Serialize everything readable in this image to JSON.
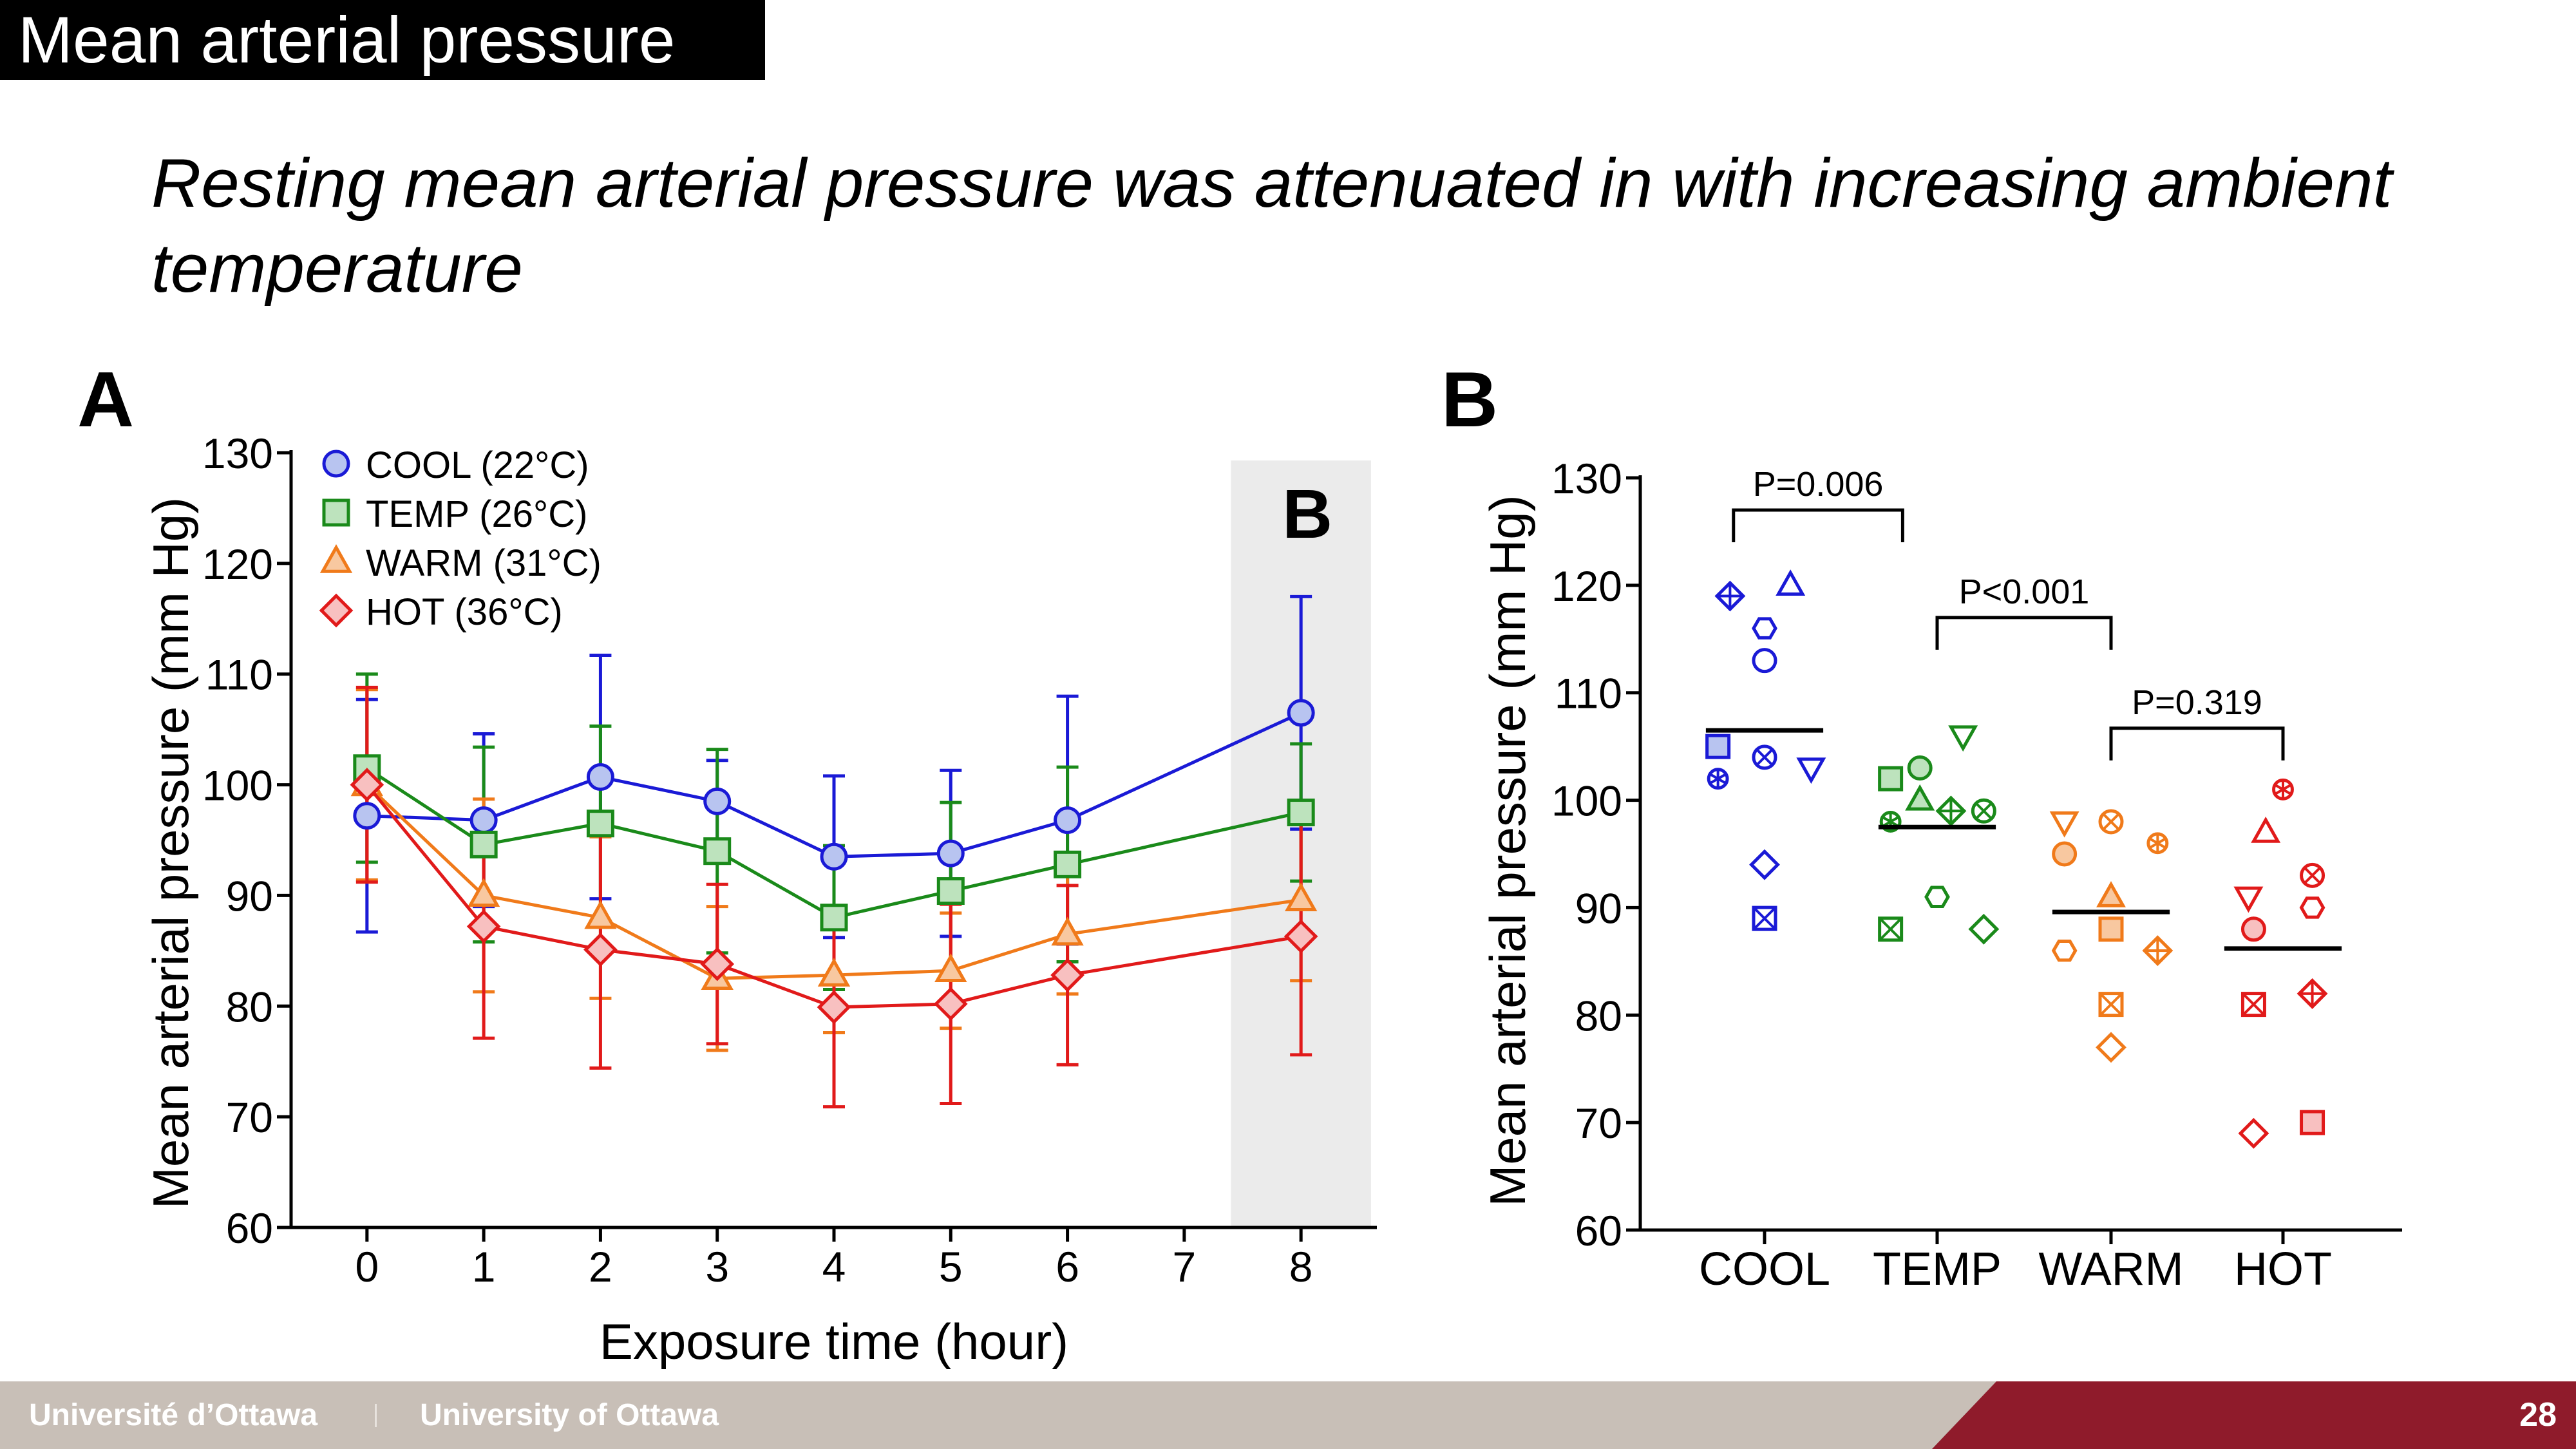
{
  "slide": {
    "title": "Mean arterial pressure",
    "subtitle_line1": "Resting mean arterial pressure was attenuated in with increasing ambient",
    "subtitle_line2": "temperature",
    "panel_a_label": "A",
    "panel_b_label": "B",
    "page_number": "28"
  },
  "footer": {
    "fr_name": "Université d’Ottawa",
    "en_name": "University of Ottawa"
  },
  "colors": {
    "COOL": "#1a1ad6",
    "TEMP": "#1a8a1a",
    "WARM": "#f07a1a",
    "HOT": "#e11a1a",
    "COOL_fill": "#b8c4f0",
    "TEMP_fill": "#bde3bd",
    "WARM_fill": "#f8c8a0",
    "HOT_fill": "#f8c0c0",
    "highlight": "#ebebeb",
    "footer_red": "#8f1b2b",
    "footer_gray": "#c8bfb7"
  },
  "chart_data": [
    {
      "type": "line",
      "xlabel": "Exposure time (hour)",
      "ylabel": "Mean arterial pressure (mm Hg)",
      "ylim": [
        60,
        130
      ],
      "yticks": [
        60,
        70,
        80,
        90,
        100,
        110,
        120,
        130
      ],
      "xlim": [
        -0.65,
        8.65
      ],
      "xticks": [
        0,
        1,
        2,
        3,
        4,
        5,
        6,
        7,
        8
      ],
      "highlight_region": {
        "x0": 7.4,
        "x1": 8.6,
        "label": "B"
      },
      "legend_position": "top-left",
      "grid": false,
      "series": [
        {
          "name": "COOL (22°C)",
          "key": "COOL",
          "marker": "circle",
          "x": [
            0,
            1,
            2,
            3,
            4,
            5,
            6,
            8
          ],
          "y": [
            97.2,
            96.8,
            100.7,
            98.5,
            93.5,
            93.8,
            96.8,
            106.5
          ],
          "err": [
            10.5,
            7.8,
            11,
            3.7,
            7.3,
            7.5,
            11.2,
            10.5
          ]
        },
        {
          "name": "TEMP (26°C)",
          "key": "TEMP",
          "marker": "square",
          "x": [
            0,
            1,
            2,
            3,
            4,
            5,
            6,
            8
          ],
          "y": [
            101.5,
            94.6,
            96.5,
            94.0,
            88.0,
            90.4,
            92.8,
            97.5
          ],
          "err": [
            8.5,
            8.8,
            8.8,
            9.2,
            6.5,
            8,
            8.8,
            6.2
          ]
        },
        {
          "name": "WARM (31°C)",
          "key": "WARM",
          "marker": "triangle",
          "x": [
            0,
            1,
            2,
            3,
            4,
            5,
            6,
            8
          ],
          "y": [
            100.0,
            90.0,
            88.0,
            82.5,
            82.8,
            83.2,
            86.5,
            89.6
          ],
          "err": [
            8.6,
            8.7,
            7.3,
            6.5,
            5.2,
            5.2,
            5.4,
            7.3
          ]
        },
        {
          "name": "HOT (36°C)",
          "key": "HOT",
          "marker": "diamond",
          "x": [
            0,
            1,
            2,
            3,
            4,
            5,
            6,
            8
          ],
          "y": [
            100.0,
            87.2,
            85.1,
            83.8,
            79.9,
            80.2,
            82.8,
            86.3
          ],
          "err": [
            8.8,
            10.1,
            10.7,
            7.2,
            9,
            9,
            8.1,
            10.7
          ]
        }
      ]
    },
    {
      "type": "scatter",
      "ylabel": "Mean arterial pressure (mm Hg)",
      "ylim": [
        60,
        130
      ],
      "yticks": [
        60,
        70,
        80,
        90,
        100,
        110,
        120,
        130
      ],
      "categories": [
        "COOL",
        "TEMP",
        "WARM",
        "HOT"
      ],
      "means": [
        106.5,
        97.5,
        89.6,
        86.2
      ],
      "brackets": [
        {
          "from": 0,
          "to": 1,
          "level": 127,
          "label": "P=0.006"
        },
        {
          "from": 1,
          "to": 2,
          "level": 117,
          "label": "P<0.001"
        },
        {
          "from": 2,
          "to": 3,
          "level": 106.7,
          "label": "P=0.319"
        }
      ],
      "points": {
        "COOL": [
          {
            "dx": -0.2,
            "y": 119,
            "m": "dplus"
          },
          {
            "dx": 0.15,
            "y": 120,
            "m": "tri"
          },
          {
            "dx": 0,
            "y": 116,
            "m": "hex"
          },
          {
            "dx": 0,
            "y": 113,
            "m": "circle"
          },
          {
            "dx": -0.27,
            "y": 105,
            "m": "square",
            "f": 1
          },
          {
            "dx": -0.27,
            "y": 102,
            "m": "star"
          },
          {
            "dx": 0,
            "y": 104,
            "m": "cx"
          },
          {
            "dx": 0.27,
            "y": 103,
            "m": "tdown"
          },
          {
            "dx": 0,
            "y": 94,
            "m": "diamond"
          },
          {
            "dx": 0,
            "y": 89,
            "m": "sqx"
          }
        ],
        "TEMP": [
          {
            "dx": 0.15,
            "y": 106,
            "m": "tdown"
          },
          {
            "dx": -0.27,
            "y": 102,
            "m": "square",
            "f": 1
          },
          {
            "dx": -0.1,
            "y": 103,
            "m": "circle",
            "f": 1
          },
          {
            "dx": -0.1,
            "y": 100,
            "m": "tri",
            "f": 1
          },
          {
            "dx": -0.27,
            "y": 98,
            "m": "star"
          },
          {
            "dx": 0.08,
            "y": 99,
            "m": "dplus"
          },
          {
            "dx": 0.27,
            "y": 99,
            "m": "cx"
          },
          {
            "dx": 0,
            "y": 91,
            "m": "hex"
          },
          {
            "dx": -0.27,
            "y": 88,
            "m": "sqx"
          },
          {
            "dx": 0.27,
            "y": 88,
            "m": "diamond"
          }
        ],
        "WARM": [
          {
            "dx": -0.27,
            "y": 98,
            "m": "tdown"
          },
          {
            "dx": 0,
            "y": 98,
            "m": "cx"
          },
          {
            "dx": 0.27,
            "y": 96,
            "m": "star"
          },
          {
            "dx": -0.27,
            "y": 95,
            "m": "circle",
            "f": 1
          },
          {
            "dx": 0,
            "y": 91,
            "m": "tri",
            "f": 1
          },
          {
            "dx": 0,
            "y": 88,
            "m": "square",
            "f": 1
          },
          {
            "dx": -0.27,
            "y": 86,
            "m": "hex"
          },
          {
            "dx": 0.27,
            "y": 86,
            "m": "dplus"
          },
          {
            "dx": 0,
            "y": 81,
            "m": "sqx"
          },
          {
            "dx": 0,
            "y": 77,
            "m": "diamond"
          }
        ],
        "HOT": [
          {
            "dx": 0,
            "y": 101,
            "m": "star"
          },
          {
            "dx": -0.1,
            "y": 97,
            "m": "tri"
          },
          {
            "dx": 0.17,
            "y": 93,
            "m": "cx"
          },
          {
            "dx": -0.2,
            "y": 91,
            "m": "tdown"
          },
          {
            "dx": 0.17,
            "y": 90,
            "m": "hex"
          },
          {
            "dx": -0.17,
            "y": 88,
            "m": "circle",
            "f": 1
          },
          {
            "dx": -0.17,
            "y": 81,
            "m": "sqx"
          },
          {
            "dx": 0.17,
            "y": 82,
            "m": "dplus"
          },
          {
            "dx": -0.17,
            "y": 69,
            "m": "diamond"
          },
          {
            "dx": 0.17,
            "y": 70,
            "m": "square",
            "f": 1
          }
        ]
      }
    }
  ]
}
